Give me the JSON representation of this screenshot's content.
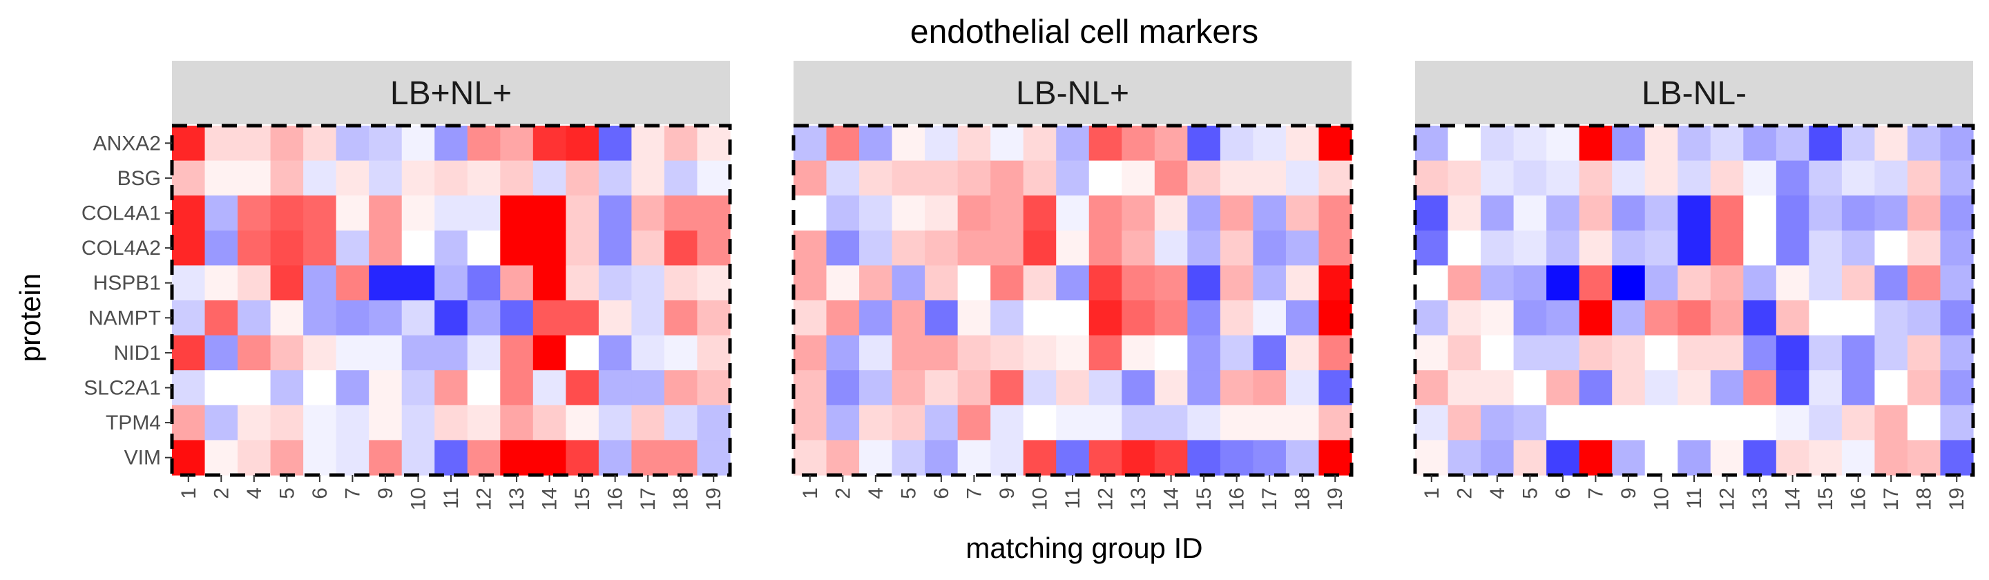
{
  "chart_data": {
    "type": "heatmap",
    "title": "endothelial cell markers",
    "xlabel": "matching group ID",
    "ylabel": "protein",
    "x": [
      "1",
      "2",
      "4",
      "5",
      "6",
      "7",
      "9",
      "10",
      "11",
      "12",
      "13",
      "14",
      "15",
      "16",
      "17",
      "18",
      "19"
    ],
    "y": [
      "ANXA2",
      "BSG",
      "COL4A1",
      "COL4A2",
      "HSPB1",
      "NAMPT",
      "NID1",
      "SLC2A1",
      "TPM4",
      "VIM"
    ],
    "color_scale": {
      "low": "#0000ff",
      "mid": "#ffffff",
      "high": "#ff0000",
      "limits": [
        -1,
        1
      ]
    },
    "grid": false,
    "panels": [
      {
        "name": "LB+NL+",
        "values": [
          [
            0.85,
            0.15,
            0.15,
            0.3,
            0.15,
            -0.25,
            -0.2,
            -0.05,
            -0.4,
            0.45,
            0.35,
            0.8,
            0.85,
            -0.6,
            0.1,
            0.25,
            0.1
          ],
          [
            0.25,
            0.05,
            0.05,
            0.25,
            -0.1,
            0.1,
            -0.15,
            0.1,
            0.15,
            0.1,
            0.2,
            -0.15,
            0.25,
            -0.2,
            0.1,
            -0.2,
            -0.05
          ],
          [
            0.85,
            -0.3,
            0.55,
            0.65,
            0.6,
            0.05,
            0.4,
            0.05,
            -0.1,
            -0.1,
            1.0,
            1.0,
            0.2,
            -0.45,
            0.3,
            0.45,
            0.45
          ],
          [
            0.85,
            -0.4,
            0.6,
            0.7,
            0.6,
            -0.2,
            0.4,
            0.0,
            -0.25,
            0.0,
            1.0,
            1.0,
            0.2,
            -0.45,
            0.2,
            0.7,
            0.45
          ],
          [
            -0.1,
            0.05,
            0.15,
            0.75,
            -0.35,
            0.5,
            -0.85,
            -0.85,
            -0.3,
            -0.55,
            0.35,
            1.0,
            0.15,
            -0.2,
            -0.15,
            0.15,
            0.1
          ],
          [
            -0.2,
            0.6,
            -0.25,
            0.05,
            -0.35,
            -0.4,
            -0.35,
            -0.15,
            -0.75,
            -0.35,
            -0.6,
            0.65,
            0.65,
            0.1,
            -0.15,
            0.45,
            0.25
          ],
          [
            0.75,
            -0.4,
            0.45,
            0.25,
            0.1,
            -0.05,
            -0.05,
            -0.3,
            -0.3,
            -0.1,
            0.5,
            1.0,
            0.0,
            -0.4,
            -0.1,
            -0.05,
            0.15
          ],
          [
            -0.15,
            0.0,
            0.0,
            -0.25,
            0.0,
            -0.35,
            0.05,
            -0.2,
            0.4,
            0.0,
            0.5,
            -0.1,
            0.7,
            -0.3,
            -0.3,
            0.35,
            0.25
          ],
          [
            0.35,
            -0.25,
            0.1,
            0.15,
            -0.05,
            -0.1,
            0.05,
            -0.15,
            0.15,
            0.1,
            0.35,
            0.2,
            0.05,
            -0.15,
            0.2,
            -0.15,
            -0.25
          ],
          [
            0.95,
            0.05,
            0.15,
            0.35,
            -0.05,
            -0.1,
            0.45,
            -0.15,
            -0.6,
            0.45,
            1.0,
            1.0,
            0.75,
            -0.3,
            0.45,
            0.45,
            -0.25
          ]
        ]
      },
      {
        "name": "LB-NL+",
        "values": [
          [
            -0.25,
            0.5,
            -0.35,
            0.05,
            -0.1,
            0.15,
            -0.05,
            0.15,
            -0.3,
            0.65,
            0.45,
            0.35,
            -0.65,
            -0.15,
            -0.1,
            0.1,
            1.0
          ],
          [
            0.35,
            -0.15,
            0.15,
            0.2,
            0.2,
            0.25,
            0.35,
            0.2,
            -0.25,
            0.0,
            0.05,
            0.45,
            0.2,
            0.1,
            0.1,
            -0.1,
            0.15
          ],
          [
            0.0,
            -0.25,
            -0.15,
            0.05,
            0.1,
            0.4,
            0.35,
            0.7,
            -0.05,
            0.45,
            0.35,
            0.1,
            -0.35,
            0.35,
            -0.35,
            0.25,
            0.45
          ],
          [
            0.35,
            -0.45,
            -0.2,
            0.2,
            0.25,
            0.35,
            0.35,
            0.75,
            0.05,
            0.45,
            0.3,
            -0.1,
            -0.3,
            0.2,
            -0.4,
            -0.3,
            0.45
          ],
          [
            0.35,
            0.05,
            0.3,
            -0.35,
            0.2,
            0.0,
            0.5,
            0.15,
            -0.4,
            0.75,
            0.5,
            0.45,
            -0.7,
            0.3,
            -0.3,
            0.1,
            0.95
          ],
          [
            0.15,
            0.4,
            -0.4,
            0.35,
            -0.55,
            0.05,
            -0.2,
            0.0,
            0.0,
            0.85,
            0.6,
            0.5,
            -0.45,
            0.15,
            -0.05,
            -0.4,
            1.0
          ],
          [
            0.35,
            -0.35,
            -0.1,
            0.35,
            0.35,
            0.2,
            0.15,
            0.1,
            0.05,
            0.6,
            0.05,
            0.0,
            -0.4,
            -0.2,
            -0.55,
            0.1,
            0.5
          ],
          [
            0.25,
            -0.45,
            -0.25,
            0.3,
            0.15,
            0.25,
            0.6,
            -0.15,
            0.15,
            -0.15,
            -0.45,
            0.1,
            -0.4,
            0.3,
            0.35,
            -0.1,
            -0.6
          ],
          [
            0.25,
            -0.3,
            0.15,
            0.2,
            -0.25,
            0.45,
            -0.1,
            0.0,
            -0.05,
            -0.05,
            -0.2,
            -0.2,
            -0.1,
            0.05,
            0.05,
            0.05,
            0.25
          ],
          [
            0.15,
            0.3,
            -0.05,
            -0.2,
            -0.35,
            -0.05,
            -0.1,
            0.7,
            -0.55,
            0.7,
            0.85,
            0.75,
            -0.6,
            -0.5,
            -0.45,
            -0.25,
            1.0
          ]
        ]
      },
      {
        "name": "LB-NL-",
        "values": [
          [
            -0.3,
            0.0,
            -0.15,
            -0.1,
            -0.05,
            1.0,
            -0.4,
            0.1,
            -0.25,
            -0.15,
            -0.35,
            -0.25,
            -0.7,
            -0.2,
            0.1,
            -0.25,
            -0.35
          ],
          [
            0.2,
            0.15,
            -0.1,
            -0.15,
            -0.1,
            0.2,
            -0.1,
            0.1,
            -0.15,
            0.15,
            -0.05,
            -0.45,
            -0.2,
            -0.1,
            -0.15,
            0.2,
            -0.3
          ],
          [
            -0.65,
            0.1,
            -0.35,
            -0.05,
            -0.3,
            0.25,
            -0.4,
            -0.25,
            -0.85,
            0.55,
            0.0,
            -0.5,
            -0.25,
            -0.4,
            -0.35,
            0.3,
            -0.4
          ],
          [
            -0.55,
            0.0,
            -0.15,
            -0.1,
            -0.25,
            0.1,
            -0.25,
            -0.2,
            -0.85,
            0.55,
            0.0,
            -0.5,
            -0.15,
            -0.25,
            0.0,
            0.15,
            -0.35
          ],
          [
            0.0,
            0.35,
            -0.3,
            -0.35,
            -0.95,
            0.6,
            -1.0,
            -0.3,
            0.2,
            0.3,
            -0.3,
            0.05,
            -0.15,
            0.2,
            -0.45,
            0.45,
            -0.3
          ],
          [
            -0.25,
            0.1,
            0.05,
            -0.4,
            -0.35,
            1.0,
            -0.3,
            0.45,
            0.55,
            0.35,
            -0.75,
            0.25,
            0.0,
            0.0,
            -0.2,
            -0.25,
            -0.45
          ],
          [
            0.05,
            0.2,
            0.0,
            -0.2,
            -0.2,
            0.2,
            0.15,
            0.0,
            0.15,
            0.15,
            -0.45,
            -0.75,
            -0.2,
            -0.45,
            -0.2,
            0.2,
            -0.3
          ],
          [
            0.3,
            0.1,
            0.1,
            0.0,
            0.3,
            -0.5,
            0.15,
            -0.1,
            0.1,
            -0.35,
            0.45,
            -0.7,
            -0.1,
            -0.45,
            0.0,
            0.25,
            -0.4
          ],
          [
            -0.1,
            0.25,
            -0.3,
            -0.25,
            0.0,
            0.0,
            0.0,
            0.0,
            0.0,
            0.0,
            0.0,
            -0.05,
            -0.15,
            0.15,
            0.3,
            0.0,
            -0.25
          ],
          [
            0.05,
            -0.25,
            -0.35,
            0.15,
            -0.75,
            1.0,
            -0.3,
            0.0,
            -0.35,
            0.05,
            -0.65,
            0.15,
            0.1,
            -0.05,
            0.3,
            0.25,
            -0.6
          ]
        ]
      }
    ]
  }
}
